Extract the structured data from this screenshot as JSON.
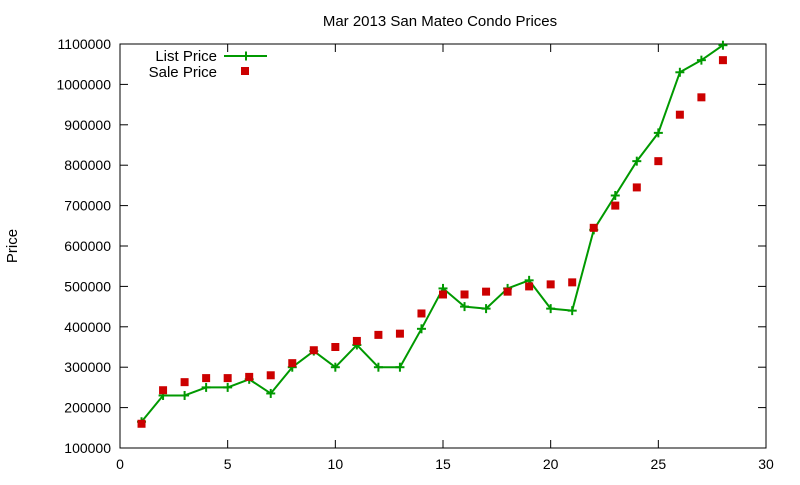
{
  "chart_data": {
    "type": "line",
    "title": "Mar 2013 San Mateo Condo Prices",
    "xlabel": "",
    "ylabel": "Price",
    "xlim": [
      0,
      30
    ],
    "ylim": [
      100000,
      1100000
    ],
    "x_ticks": [
      "0",
      "5",
      "10",
      "15",
      "20",
      "25",
      "30"
    ],
    "y_ticks": [
      "100000",
      "200000",
      "300000",
      "400000",
      "500000",
      "600000",
      "700000",
      "800000",
      "900000",
      "1000000",
      "1100000"
    ],
    "grid": false,
    "legend_position": "top-left",
    "x": [
      1,
      2,
      3,
      4,
      5,
      6,
      7,
      8,
      9,
      10,
      11,
      12,
      13,
      14,
      15,
      16,
      17,
      18,
      19,
      20,
      21,
      22,
      23,
      24,
      25,
      26,
      27,
      28
    ],
    "series": [
      {
        "name": "List Price",
        "style": "line-with-plus-markers",
        "color": "#009900",
        "values": [
          165000,
          230000,
          230000,
          250000,
          250000,
          270000,
          235000,
          300000,
          340000,
          300000,
          355000,
          300000,
          300000,
          395000,
          495000,
          450000,
          445000,
          495000,
          515000,
          445000,
          440000,
          640000,
          725000,
          810000,
          880000,
          1030000,
          1060000,
          1097000
        ]
      },
      {
        "name": "Sale Price",
        "style": "square-markers",
        "color": "#cc0000",
        "values": [
          160000,
          243000,
          263000,
          273000,
          273000,
          276000,
          280000,
          310000,
          342000,
          350000,
          365000,
          380000,
          383000,
          433000,
          480000,
          480000,
          487000,
          487000,
          500000,
          505000,
          510000,
          645000,
          700000,
          745000,
          810000,
          925000,
          968000,
          1060000
        ]
      }
    ]
  }
}
